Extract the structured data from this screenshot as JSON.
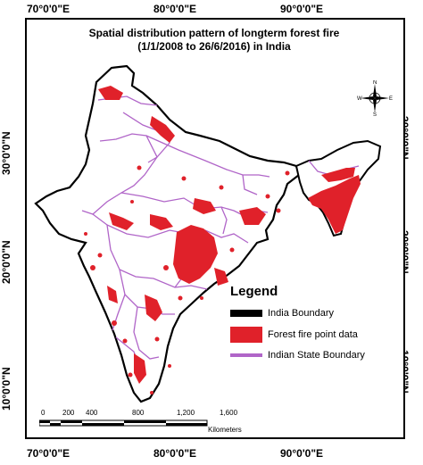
{
  "map": {
    "title_line1": "Spatial distribution pattern of longterm forest fire",
    "title_line2": "(1/1/2008 to 26/6/2016) in India",
    "longitude_labels": [
      "70°0'0\"E",
      "80°0'0\"E",
      "90°0'0\"E"
    ],
    "latitude_labels": [
      "30°0'0\"N",
      "20°0'0\"N",
      "10°0'0\"N"
    ],
    "colors": {
      "fire": "#e0212a",
      "india_boundary": "#000000",
      "state_boundary": "#b065c8",
      "background": "#ffffff"
    }
  },
  "legend": {
    "title": "Legend",
    "items": [
      {
        "label": "India Boundary",
        "color": "#000000"
      },
      {
        "label": "Forest fire point data",
        "color": "#e0212a"
      },
      {
        "label": "Indian State Boundary",
        "color": "#b065c8"
      }
    ]
  },
  "compass": {
    "n": "N",
    "s": "S",
    "e": "E",
    "w": "W"
  },
  "scale": {
    "ticks": [
      "0",
      "200",
      "400",
      "800",
      "1,200",
      "1,600"
    ],
    "unit": "Kilometers"
  }
}
